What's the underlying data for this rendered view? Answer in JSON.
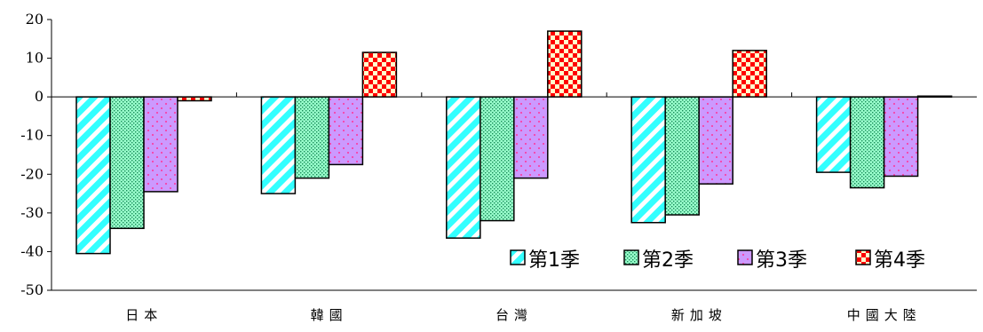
{
  "chart_data": {
    "type": "bar",
    "categories": [
      "日本",
      "韓國",
      "台灣",
      "新加坡",
      "中國大陸"
    ],
    "series": [
      {
        "name": "第1季",
        "values": [
          -40.5,
          -25.0,
          -36.5,
          -32.5,
          -19.5
        ],
        "color": "#33ffff",
        "pattern": "diagonal-stripes"
      },
      {
        "name": "第2季",
        "values": [
          -34.0,
          -21.0,
          -32.0,
          -30.5,
          -23.5
        ],
        "color": "#99ffcc",
        "pattern": "dots"
      },
      {
        "name": "第3季",
        "values": [
          -24.5,
          -17.5,
          -21.0,
          -22.5,
          -20.5
        ],
        "color": "#cc99ff",
        "pattern": "sparse-dots"
      },
      {
        "name": "第4季",
        "values": [
          -1.0,
          11.5,
          17.0,
          12.0,
          0.2
        ],
        "color": "#ff0000",
        "pattern": "checkerboard"
      }
    ],
    "ylim": [
      -50,
      20
    ],
    "yticks": [
      20,
      10,
      0,
      -10,
      -20,
      -30,
      -40,
      -50
    ],
    "grid": false,
    "legend": "bottom-right",
    "title": "",
    "xlabel": "",
    "ylabel": ""
  }
}
